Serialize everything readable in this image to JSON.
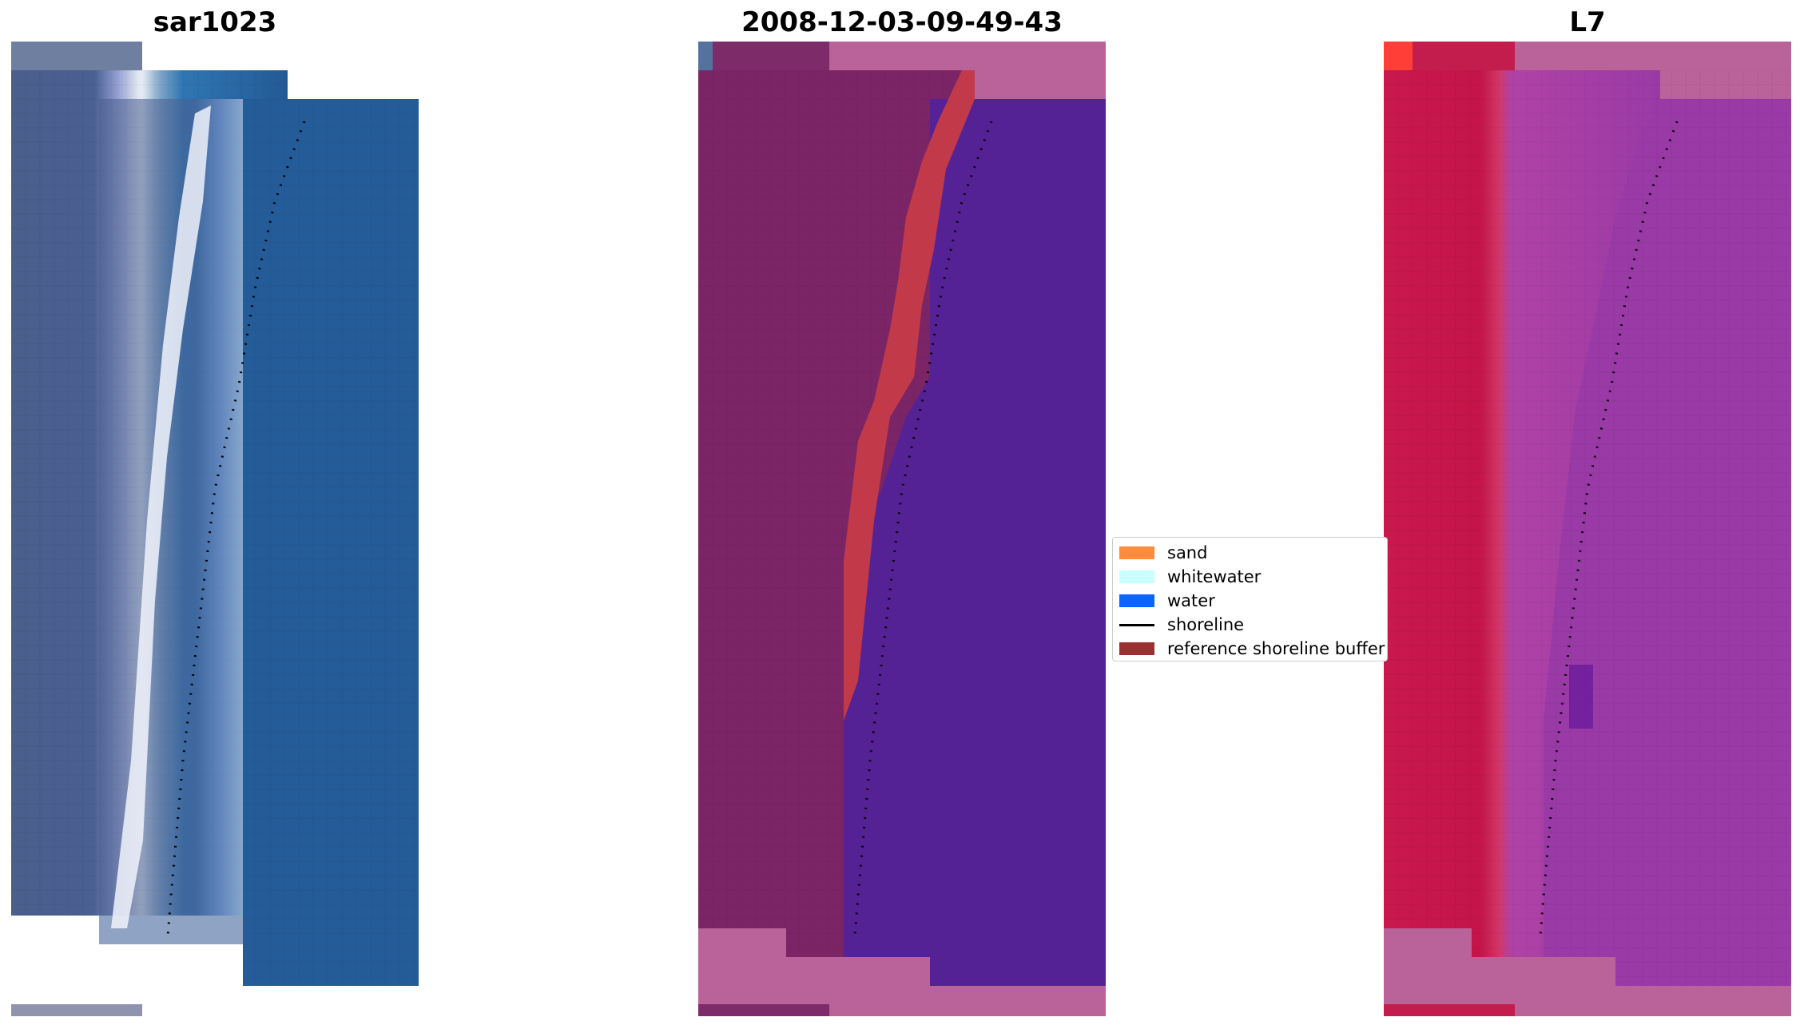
{
  "panels": [
    {
      "title": "sar1023"
    },
    {
      "title": "2008-12-03-09-49-43"
    },
    {
      "title": "L7"
    }
  ],
  "legend": {
    "items": [
      {
        "label": "sand",
        "color": "#FF8C3C",
        "kind": "patch"
      },
      {
        "label": "whitewater",
        "color": "#C8FFFF",
        "kind": "patch"
      },
      {
        "label": "water",
        "color": "#0A64FF",
        "kind": "patch"
      },
      {
        "label": "shoreline",
        "color": "#000000",
        "kind": "line"
      },
      {
        "label": "reference shoreline buffer",
        "color": "#983232",
        "kind": "patch"
      }
    ]
  }
}
